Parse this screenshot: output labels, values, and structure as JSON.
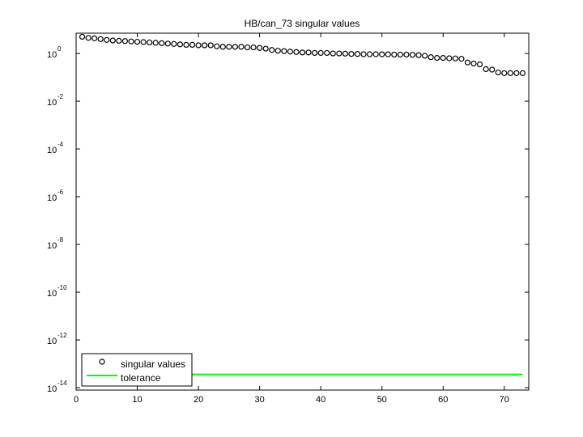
{
  "chart_data": {
    "type": "scatter",
    "title": "HB/can_73 singular values",
    "xlabel": "",
    "ylabel": "",
    "xlim": [
      0,
      74
    ],
    "ylim_log10": [
      -14.1,
      0.85
    ],
    "yscale": "log",
    "grid": false,
    "legend_position": "bottom-left",
    "x_ticks": [
      "0",
      "10",
      "20",
      "30",
      "40",
      "50",
      "60",
      "70"
    ],
    "y_ticks": [
      {
        "base": "10",
        "exp": "0",
        "log10": 0
      },
      {
        "base": "10",
        "exp": "-2",
        "log10": -2
      },
      {
        "base": "10",
        "exp": "-4",
        "log10": -4
      },
      {
        "base": "10",
        "exp": "-6",
        "log10": -6
      },
      {
        "base": "10",
        "exp": "-8",
        "log10": -8
      },
      {
        "base": "10",
        "exp": "-10",
        "log10": -10
      },
      {
        "base": "10",
        "exp": "-12",
        "log10": -12
      },
      {
        "base": "10",
        "exp": "-14",
        "log10": -14
      }
    ],
    "series": [
      {
        "name": "singular values",
        "marker": "circle",
        "color": "#000000",
        "x": [
          1,
          2,
          3,
          4,
          5,
          6,
          7,
          8,
          9,
          10,
          11,
          12,
          13,
          14,
          15,
          16,
          17,
          18,
          19,
          20,
          21,
          22,
          23,
          24,
          25,
          26,
          27,
          28,
          29,
          30,
          31,
          32,
          33,
          34,
          35,
          36,
          37,
          38,
          39,
          40,
          41,
          42,
          43,
          44,
          45,
          46,
          47,
          48,
          49,
          50,
          51,
          52,
          53,
          54,
          55,
          56,
          57,
          58,
          59,
          60,
          61,
          62,
          63,
          64,
          65,
          66,
          67,
          68,
          69,
          70,
          71,
          72,
          73
        ],
        "y": [
          5.0,
          4.5,
          4.3,
          4.0,
          3.7,
          3.5,
          3.4,
          3.3,
          3.2,
          3.1,
          3.0,
          2.9,
          2.8,
          2.7,
          2.6,
          2.5,
          2.4,
          2.3,
          2.3,
          2.2,
          2.2,
          2.2,
          2.0,
          1.9,
          1.9,
          1.9,
          1.9,
          1.8,
          1.8,
          1.7,
          1.6,
          1.4,
          1.3,
          1.25,
          1.2,
          1.15,
          1.1,
          1.1,
          1.05,
          1.05,
          1.05,
          1.0,
          1.0,
          0.98,
          0.95,
          0.95,
          0.93,
          0.93,
          0.93,
          0.92,
          0.92,
          0.9,
          0.9,
          0.9,
          0.88,
          0.85,
          0.8,
          0.7,
          0.65,
          0.65,
          0.63,
          0.62,
          0.6,
          0.42,
          0.38,
          0.35,
          0.22,
          0.21,
          0.16,
          0.15,
          0.15,
          0.15,
          0.15
        ]
      },
      {
        "name": "tolerance",
        "marker": "line",
        "color": "#00ff00",
        "x": [
          1,
          73
        ],
        "y": [
          3.6e-14,
          3.6e-14
        ]
      }
    ]
  }
}
